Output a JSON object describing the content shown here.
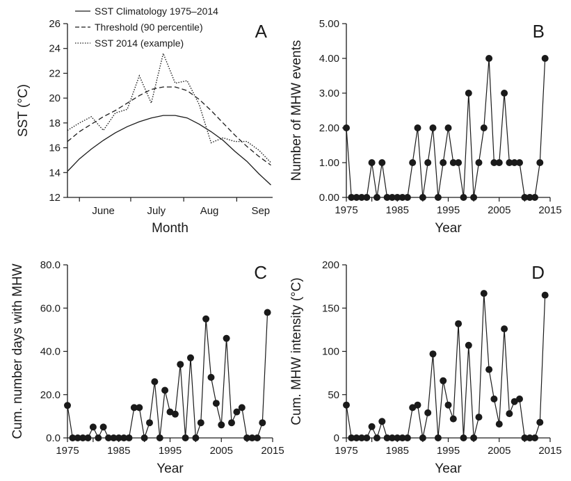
{
  "chart_data": [
    {
      "panel": "A",
      "type": "line",
      "xlabel": "Month",
      "ylabel": "SST  (°C)",
      "ylim": [
        12,
        26
      ],
      "yticks": [
        "12",
        "14",
        "16",
        "18",
        "20",
        "22",
        "24",
        "26"
      ],
      "month_labels": [
        "June",
        "July",
        "Aug",
        "Sep"
      ],
      "x_domain": [
        "2014-05-25",
        "2014-09-22"
      ],
      "x": [
        "2014-05-25",
        "2014-06-01",
        "2014-06-08",
        "2014-06-15",
        "2014-06-22",
        "2014-06-29",
        "2014-07-06",
        "2014-07-13",
        "2014-07-20",
        "2014-07-27",
        "2014-08-03",
        "2014-08-10",
        "2014-08-17",
        "2014-08-24",
        "2014-08-31",
        "2014-09-07",
        "2014-09-14",
        "2014-09-21"
      ],
      "series": [
        {
          "name": "SST Climatology 1975–2014",
          "style": "solid",
          "values": [
            14.1,
            15.1,
            15.9,
            16.6,
            17.2,
            17.7,
            18.1,
            18.4,
            18.6,
            18.6,
            18.4,
            17.9,
            17.3,
            16.6,
            15.7,
            14.9,
            13.9,
            13.0
          ]
        },
        {
          "name": "Threshold (90 percentile)",
          "style": "dashed",
          "values": [
            16.5,
            17.3,
            17.9,
            18.5,
            19.0,
            19.6,
            20.2,
            20.7,
            20.9,
            20.9,
            20.6,
            19.9,
            19.0,
            18.0,
            17.0,
            16.1,
            15.3,
            14.6
          ]
        },
        {
          "name": "SST 2014 (example)",
          "style": "dotted",
          "values": [
            17.4,
            18.0,
            18.5,
            17.4,
            18.8,
            19.1,
            21.8,
            19.6,
            23.6,
            21.2,
            21.4,
            19.5,
            16.4,
            16.8,
            16.5,
            16.5,
            15.8,
            14.8
          ]
        }
      ],
      "letter": "A"
    },
    {
      "panel": "B",
      "type": "line",
      "xlabel": "Year",
      "ylabel": "Number of MHW events",
      "xlim": [
        1975,
        2015
      ],
      "ylim": [
        0,
        5
      ],
      "xticks": [
        "1975",
        "1985",
        "1995",
        "2005",
        "2015"
      ],
      "yticks": [
        "0.00",
        "1.00",
        "2.00",
        "3.00",
        "4.00",
        "5.00"
      ],
      "x": [
        1975,
        1976,
        1977,
        1978,
        1979,
        1980,
        1981,
        1982,
        1983,
        1984,
        1985,
        1986,
        1987,
        1988,
        1989,
        1990,
        1991,
        1992,
        1993,
        1994,
        1995,
        1996,
        1997,
        1998,
        1999,
        2000,
        2001,
        2002,
        2003,
        2004,
        2005,
        2006,
        2007,
        2008,
        2009,
        2010,
        2011,
        2012,
        2013,
        2014
      ],
      "values": [
        2,
        0,
        0,
        0,
        0,
        1,
        0,
        1,
        0,
        0,
        0,
        0,
        0,
        1,
        2,
        0,
        1,
        2,
        0,
        1,
        2,
        1,
        1,
        0,
        3,
        0,
        1,
        2,
        4,
        1,
        1,
        3,
        1,
        1,
        1,
        0,
        0,
        0,
        1,
        4
      ],
      "letter": "B"
    },
    {
      "panel": "C",
      "type": "line",
      "xlabel": "Year",
      "ylabel": "Cum. number days with MHW",
      "xlim": [
        1975,
        2015
      ],
      "ylim": [
        0,
        80
      ],
      "xticks": [
        "1975",
        "1985",
        "1995",
        "2005",
        "2015"
      ],
      "yticks": [
        "0.0",
        "20.0",
        "40.0",
        "60.0",
        "80.0"
      ],
      "x": [
        1975,
        1976,
        1977,
        1978,
        1979,
        1980,
        1981,
        1982,
        1983,
        1984,
        1985,
        1986,
        1987,
        1988,
        1989,
        1990,
        1991,
        1992,
        1993,
        1994,
        1995,
        1996,
        1997,
        1998,
        1999,
        2000,
        2001,
        2002,
        2003,
        2004,
        2005,
        2006,
        2007,
        2008,
        2009,
        2010,
        2011,
        2012,
        2013,
        2014
      ],
      "values": [
        15,
        0,
        0,
        0,
        0,
        5,
        0,
        5,
        0,
        0,
        0,
        0,
        0,
        14,
        14,
        0,
        7,
        26,
        0,
        22,
        12,
        11,
        34,
        0,
        37,
        0,
        7,
        55,
        28,
        16,
        6,
        46,
        7,
        12,
        14,
        0,
        0,
        0,
        7,
        58
      ],
      "letter": "C"
    },
    {
      "panel": "D",
      "type": "line",
      "xlabel": "Year",
      "ylabel": "Cum. MHW intensity (°C)",
      "xlim": [
        1975,
        2015
      ],
      "ylim": [
        0,
        200
      ],
      "xticks": [
        "1975",
        "1985",
        "1995",
        "2005",
        "2015"
      ],
      "yticks": [
        "0",
        "50",
        "100",
        "150",
        "200"
      ],
      "x": [
        1975,
        1976,
        1977,
        1978,
        1979,
        1980,
        1981,
        1982,
        1983,
        1984,
        1985,
        1986,
        1987,
        1988,
        1989,
        1990,
        1991,
        1992,
        1993,
        1994,
        1995,
        1996,
        1997,
        1998,
        1999,
        2000,
        2001,
        2002,
        2003,
        2004,
        2005,
        2006,
        2007,
        2008,
        2009,
        2010,
        2011,
        2012,
        2013,
        2014
      ],
      "values": [
        38,
        0,
        0,
        0,
        0,
        13,
        0,
        19,
        0,
        0,
        0,
        0,
        0,
        35,
        38,
        0,
        29,
        97,
        0,
        66,
        38,
        22,
        132,
        0,
        107,
        0,
        24,
        167,
        79,
        45,
        16,
        126,
        28,
        42,
        45,
        0,
        0,
        0,
        18,
        165
      ],
      "letter": "D"
    }
  ],
  "legend": [
    {
      "label": "SST Climatology 1975–2014",
      "style": "solid"
    },
    {
      "label": "Threshold (90 percentile)",
      "style": "dashed"
    },
    {
      "label": "SST 2014 (example)",
      "style": "dotted"
    }
  ]
}
